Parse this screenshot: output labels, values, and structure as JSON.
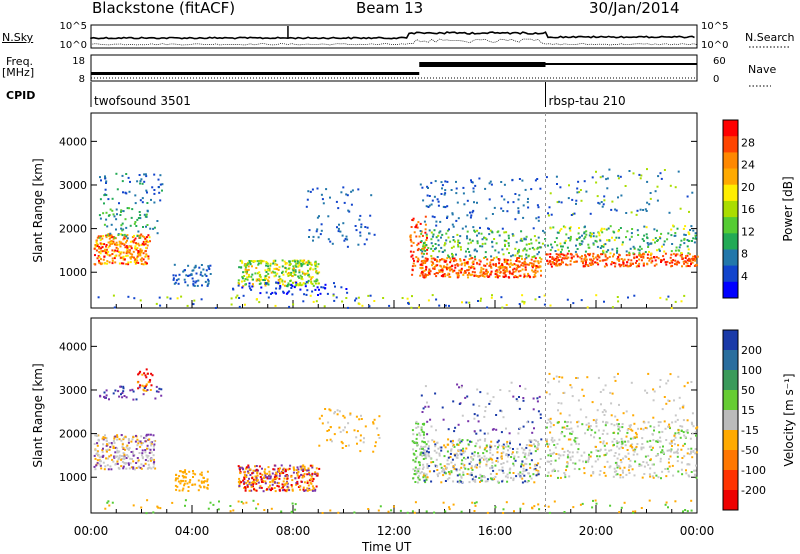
{
  "header": {
    "station": "Blackstone (fitACF)",
    "beam": "Beam 13",
    "date": "30/Jan/2014"
  },
  "chart_data": {
    "type": "heatmap",
    "x_axis": {
      "label": "Time UT",
      "range_hours": [
        0,
        24
      ],
      "tick_labels": [
        "00:00",
        "04:00",
        "08:00",
        "12:00",
        "16:00",
        "20:00",
        "00:00"
      ]
    },
    "summary_panels": {
      "nsky": {
        "label": "N.Sky",
        "right_label": "N.Search",
        "tick_labels": [
          "10^5",
          "10^0"
        ]
      },
      "freq": {
        "label_line1": "Freq.",
        "label_line2": "[MHz]",
        "right_label": "Nave",
        "left_ticks": [
          "18",
          "8"
        ],
        "right_ticks": [
          "60",
          "0"
        ]
      },
      "cpid": {
        "label": "CPID",
        "segments": [
          {
            "name": "twofsound 3501",
            "start_hour": 0,
            "end_hour": 18
          },
          {
            "name": "rbsp-tau 210",
            "start_hour": 18,
            "end_hour": 24
          }
        ]
      }
    },
    "power_panel": {
      "ylabel": "Slant Range [km]",
      "y_ticks": [
        "4000",
        "3000",
        "2000",
        "1000"
      ],
      "y_range_km": [
        180,
        4650
      ],
      "colorbar_label": "Power [dB]",
      "colorbar_ticks": [
        "28",
        "24",
        "20",
        "16",
        "12",
        "8",
        "4"
      ],
      "colorbar_colors": [
        "#ff0000",
        "#ff4400",
        "#ff8800",
        "#ffaa00",
        "#ffee00",
        "#aadd00",
        "#55cc33",
        "#22aa55",
        "#2277aa",
        "#1144cc",
        "#0000ff"
      ]
    },
    "velocity_panel": {
      "ylabel": "Slant Range [km]",
      "y_ticks": [
        "4000",
        "3000",
        "2000",
        "1000"
      ],
      "y_range_km": [
        180,
        4650
      ],
      "colorbar_label": "Velocity [m s⁻¹]",
      "colorbar_ticks": [
        "200",
        "100",
        "50",
        "15",
        "-15",
        "-50",
        "-100",
        "-200"
      ],
      "colorbar_colors": [
        "#1a3aa8",
        "#2a6e9e",
        "#3a9a5a",
        "#66cc33",
        "#bbbbbb",
        "#ffaa00",
        "#ff7700",
        "#ff3300",
        "#ee0000"
      ]
    }
  }
}
